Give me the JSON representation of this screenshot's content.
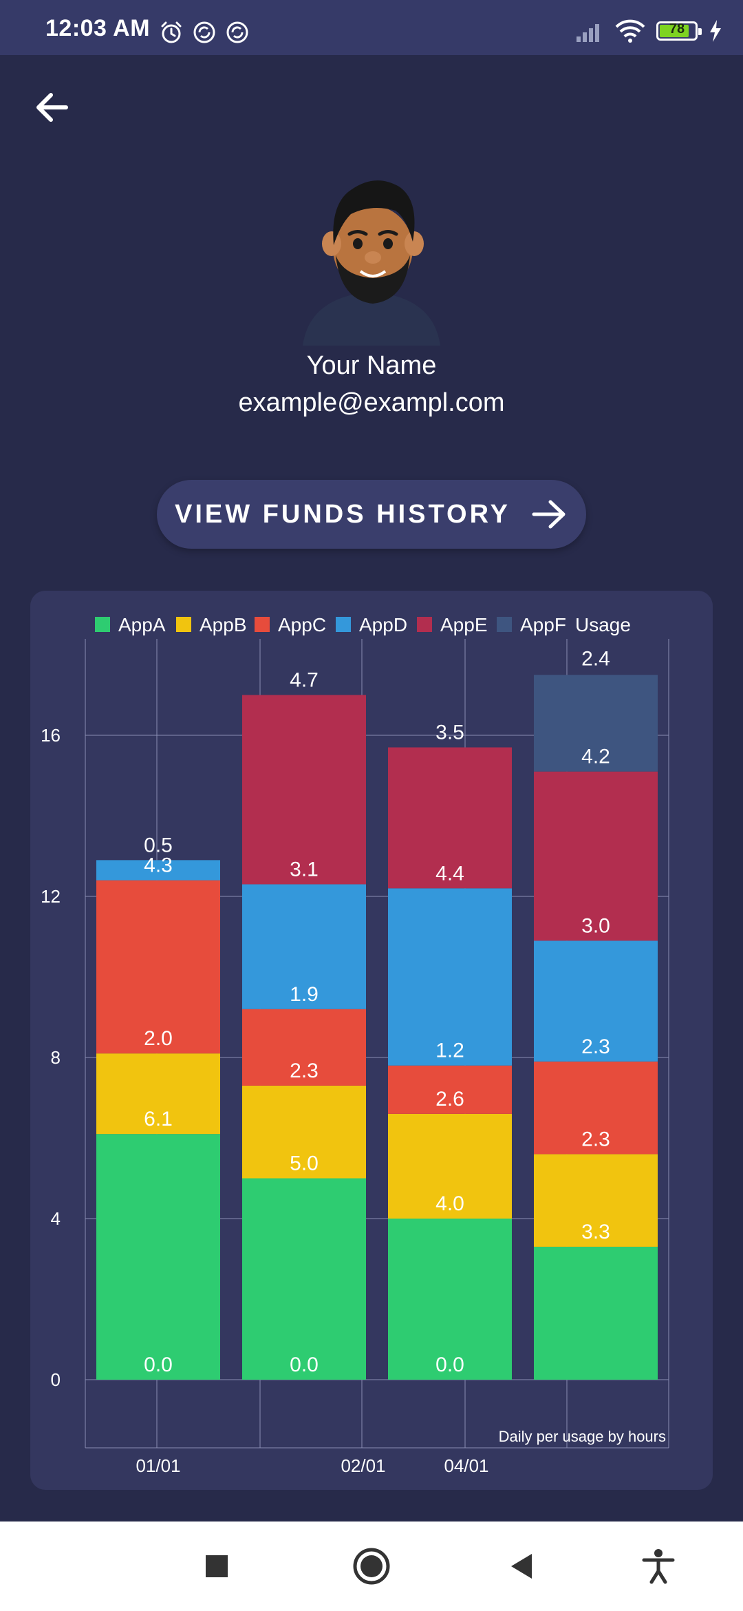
{
  "status_bar": {
    "time": "12:03 AM",
    "battery": "78",
    "icons": [
      "alarm-icon",
      "sync-icon",
      "sync-icon",
      "signal-icon",
      "wifi-icon",
      "battery-icon",
      "charging-icon"
    ]
  },
  "profile": {
    "name": "Your Name",
    "email": "example@exampl.com"
  },
  "funds_button": {
    "label": "VIEW FUNDS HISTORY"
  },
  "nav_bar": {
    "icons": [
      "square-icon",
      "circle-icon",
      "triangle-back-icon",
      "accessibility-icon"
    ]
  },
  "chart_data": {
    "type": "bar",
    "stacked": true,
    "categories": [
      "01/01",
      "",
      "02/01",
      "04/01"
    ],
    "x_tick_labels": [
      "01/01",
      "02/01",
      "04/01"
    ],
    "ylim": [
      0,
      18
    ],
    "y_ticks": [
      0,
      4,
      8,
      12,
      16
    ],
    "legend_position": "top",
    "legend_label": "Usage",
    "grid": true,
    "description": "Daily per usage by hours",
    "series": [
      {
        "name": "AppA",
        "color": "#2ecc71",
        "values": [
          6.1,
          5.0,
          4.0,
          3.3
        ],
        "labels": [
          "0.0",
          "0.0",
          "0.0",
          ""
        ]
      },
      {
        "name": "AppB",
        "color": "#f1c40f",
        "values": [
          2.0,
          2.3,
          2.6,
          2.3
        ],
        "labels": [
          "6.1",
          "5.0",
          "4.0",
          "3.3"
        ]
      },
      {
        "name": "AppC",
        "color": "#e74c3c",
        "values": [
          4.3,
          1.9,
          1.2,
          2.3
        ],
        "labels": [
          "2.0",
          "2.3",
          "2.6",
          "2.3"
        ]
      },
      {
        "name": "AppD",
        "color": "#3498db",
        "values": [
          0.5,
          3.1,
          4.4,
          3.0
        ],
        "labels": [
          "4.3",
          "1.9",
          "1.2",
          "2.3"
        ]
      },
      {
        "name": "AppE",
        "color": "#b22e4f",
        "values": [
          0,
          4.7,
          3.5,
          4.2
        ],
        "labels": [
          "0.5",
          "3.1",
          "4.4",
          "3.0"
        ]
      },
      {
        "name": "AppF",
        "color": "#3e5580",
        "values": [
          0,
          0,
          0,
          2.4
        ],
        "labels": [
          "",
          "4.7",
          "3.5",
          "4.2"
        ]
      }
    ],
    "top_labels": [
      "",
      "",
      "",
      "2.4"
    ]
  }
}
